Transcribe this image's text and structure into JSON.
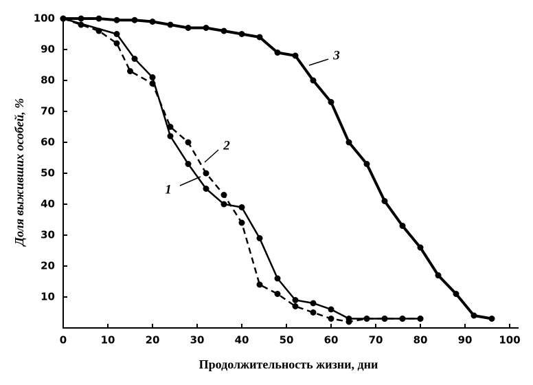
{
  "chart_data": {
    "type": "line",
    "xlabel": "Продолжительность  жизни, дни",
    "ylabel": "Доля выживших особей, %",
    "xlim": [
      0,
      102
    ],
    "ylim": [
      0,
      100
    ],
    "xticks": [
      0,
      10,
      20,
      30,
      40,
      50,
      60,
      70,
      80,
      90,
      100
    ],
    "yticks": [
      10,
      20,
      30,
      40,
      50,
      60,
      70,
      80,
      90,
      100
    ],
    "series": [
      {
        "name": "1",
        "color": "#000000",
        "dashed": false,
        "x": [
          0,
          12,
          16,
          20,
          24,
          28,
          32,
          36,
          40,
          44,
          48,
          52,
          56,
          60,
          64,
          68,
          72,
          76,
          80
        ],
        "values": [
          100,
          95,
          87,
          81,
          62,
          53,
          45,
          40,
          39,
          29,
          16,
          9,
          8,
          6,
          3,
          3,
          3,
          3,
          3
        ]
      },
      {
        "name": "2",
        "color": "#000000",
        "dashed": true,
        "x": [
          0,
          4,
          8,
          12,
          15,
          20,
          24,
          28,
          32,
          36,
          40,
          44,
          48,
          52,
          56,
          60,
          64,
          68,
          72,
          76,
          80
        ],
        "values": [
          100,
          98,
          96,
          92,
          83,
          79,
          65,
          60,
          50,
          43,
          34,
          14,
          11,
          7,
          5,
          3,
          2,
          3,
          3,
          3,
          3
        ]
      },
      {
        "name": "3",
        "color": "#000000",
        "dashed": false,
        "x": [
          0,
          4,
          8,
          12,
          16,
          20,
          24,
          28,
          32,
          36,
          40,
          44,
          48,
          52,
          56,
          60,
          64,
          68,
          72,
          76,
          80,
          84,
          88,
          92,
          96
        ],
        "values": [
          100,
          100,
          100,
          99.5,
          99.5,
          99,
          98,
          97,
          97,
          96,
          95,
          94,
          89,
          88,
          80,
          73,
          60,
          53,
          41,
          33,
          26,
          17,
          11,
          4,
          3
        ]
      }
    ]
  }
}
